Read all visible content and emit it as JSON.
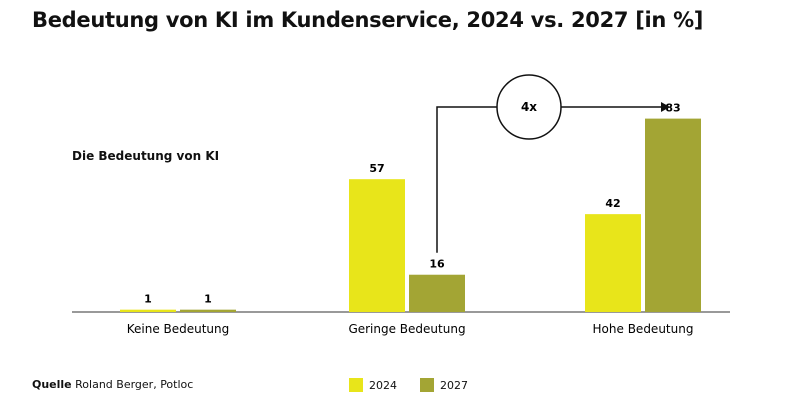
{
  "chart_data": {
    "type": "bar",
    "title": "Bedeutung von KI im Kundenservice, 2024 vs. 2027 [in %]",
    "subtitle": "Die Bedeutung von KI",
    "categories": [
      "Keine Bedeutung",
      "Geringe Bedeutung",
      "Hohe Bedeutung"
    ],
    "series": [
      {
        "name": "2024",
        "values": [
          1,
          57,
          42
        ],
        "color": "#e8e51a"
      },
      {
        "name": "2027",
        "values": [
          1,
          16,
          83
        ],
        "color": "#a3a534"
      }
    ],
    "annotation": "4x",
    "grid": false,
    "legend": "bottom"
  },
  "source": {
    "label": "Quelle",
    "text": "Roland Berger, Potloc"
  }
}
